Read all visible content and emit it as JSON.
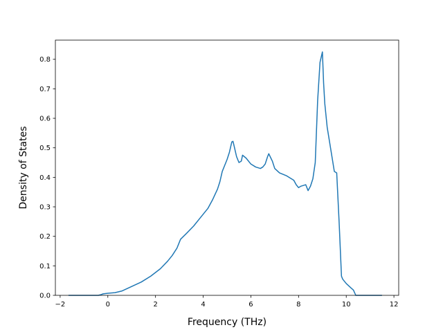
{
  "chart_data": {
    "type": "line",
    "title": "",
    "xlabel": "Frequency (THz)",
    "ylabel": "Density of States",
    "xlim": [
      -2.2,
      12.2
    ],
    "ylim": [
      0.0,
      0.865
    ],
    "xticks": [
      -2,
      0,
      2,
      4,
      6,
      8,
      10,
      12
    ],
    "yticks": [
      0.0,
      0.1,
      0.2,
      0.3,
      0.4,
      0.5,
      0.6,
      0.7,
      0.8
    ],
    "xtick_labels": [
      "−2",
      "0",
      "2",
      "4",
      "6",
      "8",
      "10",
      "12"
    ],
    "ytick_labels": [
      "0.0",
      "0.1",
      "0.2",
      "0.3",
      "0.4",
      "0.5",
      "0.6",
      "0.7",
      "0.8"
    ],
    "grid": false,
    "series": [
      {
        "color": "#1f77b4",
        "x": [
          -1.65,
          -0.4,
          -0.3,
          -0.2,
          0.0,
          0.3,
          0.6,
          1.0,
          1.4,
          1.8,
          2.2,
          2.5,
          2.7,
          2.9,
          3.0,
          3.05,
          3.3,
          3.6,
          3.9,
          4.2,
          4.4,
          4.6,
          4.7,
          4.8,
          5.0,
          5.1,
          5.2,
          5.25,
          5.3,
          5.4,
          5.5,
          5.6,
          5.65,
          5.8,
          6.0,
          6.2,
          6.4,
          6.5,
          6.6,
          6.7,
          6.75,
          6.9,
          7.0,
          7.2,
          7.5,
          7.8,
          7.9,
          8.0,
          8.1,
          8.3,
          8.4,
          8.5,
          8.6,
          8.7,
          8.8,
          8.9,
          9.0,
          9.05,
          9.1,
          9.2,
          9.3,
          9.4,
          9.5,
          9.6,
          9.7,
          9.8,
          9.85,
          10.0,
          10.2,
          10.3,
          10.4,
          10.5,
          11.5
        ],
        "y": [
          0.0,
          0.0,
          0.002,
          0.005,
          0.007,
          0.009,
          0.015,
          0.03,
          0.045,
          0.065,
          0.09,
          0.115,
          0.135,
          0.16,
          0.18,
          0.19,
          0.21,
          0.235,
          0.265,
          0.295,
          0.325,
          0.36,
          0.385,
          0.42,
          0.46,
          0.485,
          0.52,
          0.522,
          0.505,
          0.47,
          0.45,
          0.455,
          0.475,
          0.465,
          0.445,
          0.435,
          0.43,
          0.435,
          0.445,
          0.47,
          0.48,
          0.455,
          0.43,
          0.415,
          0.405,
          0.39,
          0.375,
          0.365,
          0.37,
          0.375,
          0.355,
          0.37,
          0.395,
          0.45,
          0.66,
          0.79,
          0.825,
          0.72,
          0.65,
          0.57,
          0.52,
          0.47,
          0.42,
          0.415,
          0.25,
          0.065,
          0.055,
          0.04,
          0.025,
          0.018,
          0.0,
          0.0,
          0.0
        ]
      }
    ]
  }
}
